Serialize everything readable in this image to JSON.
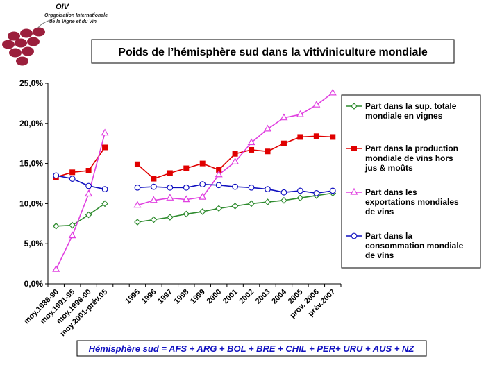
{
  "logo": {
    "name": "OIV",
    "line1": "Organisation Internationale",
    "line2": "de la Vigne et du Vin",
    "color": "#9b1f3c"
  },
  "chart_data": {
    "type": "line",
    "title": "Poids de l’hémisphère sud dans la vitiviniculture mondiale",
    "ylim": [
      0,
      25
    ],
    "yticks": [
      "0,0%",
      "5,0%",
      "10,0%",
      "15,0%",
      "20,0%",
      "25,0%"
    ],
    "grid": false,
    "legend_position": "right",
    "categories": [
      "moy.1986-90",
      "moy.1991-95",
      "moy.1996-00",
      "moy.2001-prév.05",
      "",
      "1995",
      "1996",
      "1997",
      "1998",
      "1999",
      "2000",
      "2001",
      "2002",
      "2003",
      "2004",
      "2005",
      "prov. 2006",
      "prév.2007"
    ],
    "series": [
      {
        "name": "Part dans la sup. totale mondiale en vignes",
        "legend_lines": [
          "Part dans la sup. totale",
          "mondiale en vignes"
        ],
        "color": "#2e8b2e",
        "marker": "diamond",
        "values": [
          7.2,
          7.3,
          8.6,
          10.0,
          null,
          7.7,
          8.0,
          8.3,
          8.7,
          9.0,
          9.4,
          9.7,
          10.0,
          10.2,
          10.4,
          10.7,
          11.0,
          11.3
        ]
      },
      {
        "name": "Part dans la production mondiale de vins hors jus & moûts",
        "legend_lines": [
          "Part dans la production",
          "mondiale de vins hors",
          "jus & moûts"
        ],
        "color": "#e00000",
        "marker": "square",
        "values": [
          13.3,
          13.9,
          14.1,
          17.0,
          null,
          14.9,
          13.1,
          13.8,
          14.4,
          15.0,
          14.2,
          16.2,
          16.7,
          16.5,
          17.5,
          18.3,
          18.4,
          18.3
        ]
      },
      {
        "name": "Part dans les exportations mondiales de vins",
        "legend_lines": [
          "Part dans les",
          "exportations mondiales",
          "de vins"
        ],
        "color": "#e040e0",
        "marker": "triangle",
        "values": [
          1.8,
          6.0,
          11.2,
          18.8,
          null,
          9.8,
          10.4,
          10.7,
          10.5,
          10.8,
          13.6,
          15.2,
          17.6,
          19.3,
          20.7,
          21.1,
          22.3,
          23.8
        ]
      },
      {
        "name": "Part dans la consommation mondiale de vins",
        "legend_lines": [
          "Part dans la",
          "consommation mondiale",
          "de vins"
        ],
        "color": "#1010c0",
        "marker": "circle",
        "values": [
          13.5,
          13.1,
          12.2,
          11.8,
          null,
          12.0,
          12.1,
          12.0,
          12.0,
          12.4,
          12.3,
          12.1,
          12.0,
          11.8,
          11.4,
          11.6,
          11.3,
          11.6
        ]
      }
    ],
    "footnote": "Hémisphère sud = AFS + ARG + BOL + BRE + CHIL + PER+ URU + AUS + NZ"
  }
}
